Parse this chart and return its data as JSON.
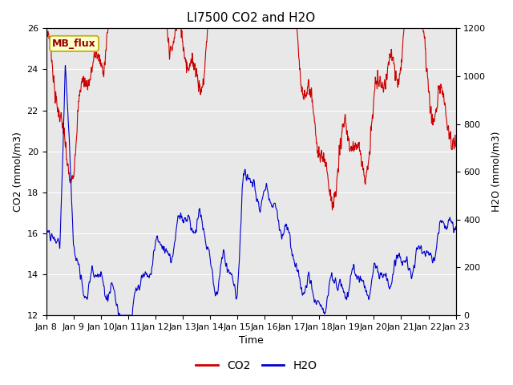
{
  "title": "LI7500 CO2 and H2O",
  "xlabel": "Time",
  "ylabel_left": "CO2 (mmol/m3)",
  "ylabel_right": "H2O (mmol/m3)",
  "ylim_left": [
    12,
    26
  ],
  "ylim_right": [
    0,
    1200
  ],
  "yticks_left": [
    12,
    14,
    16,
    18,
    20,
    22,
    24,
    26
  ],
  "yticks_right": [
    0,
    200,
    400,
    600,
    800,
    1000,
    1200
  ],
  "xtick_labels": [
    "Jan 8",
    "Jan 9",
    "Jan 10",
    "Jan 11",
    "Jan 12",
    "Jan 13",
    "Jan 14",
    "Jan 15",
    "Jan 16",
    "Jan 17",
    "Jan 18",
    "Jan 19",
    "Jan 20",
    "Jan 21",
    "Jan 22",
    "Jan 23"
  ],
  "co2_color": "#cc0000",
  "h2o_color": "#0000cc",
  "legend_label_co2": "CO2",
  "legend_label_h2o": "H2O",
  "annotation_text": "MB_flux",
  "annotation_bg": "#ffffcc",
  "annotation_border": "#bbaa00",
  "plot_bg": "#e8e8e8",
  "title_fontsize": 11,
  "axis_fontsize": 9,
  "tick_fontsize": 8,
  "legend_fontsize": 10,
  "line_width": 0.8,
  "n_points": 2000,
  "seed": 7
}
